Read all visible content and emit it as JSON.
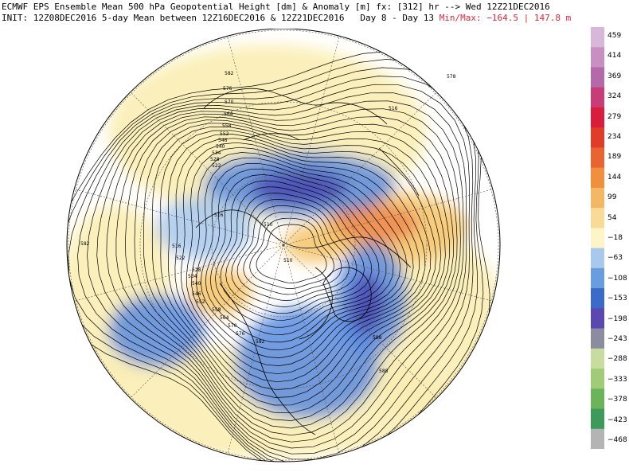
{
  "header": {
    "line1": "ECMWF EPS Ensemble Mean 500 hPa Geopotential Height [dm] & Anomaly [m] fx: [312] hr --> Wed 12Z21DEC2016",
    "line2_left": "INIT: 12Z08DEC2016 5-day Mean between 12Z16DEC2016 & 12Z21DEC2016   Day 8 - Day 13",
    "line2_minmax": "Min/Max: −164.5 | 147.8 m"
  },
  "colorbar": {
    "labels": [
      "459",
      "414",
      "369",
      "324",
      "279",
      "234",
      "189",
      "144",
      "99",
      "54",
      "−18",
      "−63",
      "−108",
      "−153",
      "−198",
      "−243",
      "−288",
      "−333",
      "−378",
      "−423",
      "−468"
    ],
    "colors": [
      "#d8b8d8",
      "#c890c0",
      "#b46aa8",
      "#c83c78",
      "#d81e3c",
      "#e03c28",
      "#e86432",
      "#f0903c",
      "#f4b864",
      "#f8dc96",
      "#fdf5c8",
      "#a8c8ec",
      "#6a9ce0",
      "#3c6ac8",
      "#5a48b0",
      "#8c8ca0",
      "#c8dca0",
      "#a0cc78",
      "#6cb45a",
      "#3c9a5a",
      "#b4b4b4"
    ]
  },
  "map": {
    "colors": {
      "background": "#ffffff",
      "warm_light": "#fbeeb4",
      "warm_mid": "#f6c870",
      "warm_strong": "#ee8c4e",
      "cold_light": "#a8c8ec",
      "cold_mid": "#5a8ce0",
      "cold_strong": "#4a4ab4",
      "contour": "#000000",
      "coast": "#000000",
      "grid": "#555555"
    },
    "contour_labels": [
      "582",
      "576",
      "570",
      "564",
      "558",
      "552",
      "546",
      "540",
      "534",
      "528",
      "522",
      "516",
      "510",
      "516",
      "522",
      "528",
      "534",
      "540",
      "546",
      "552",
      "558",
      "564",
      "570",
      "576",
      "582",
      "588",
      "588",
      "582",
      "578",
      "516",
      "510"
    ]
  }
}
